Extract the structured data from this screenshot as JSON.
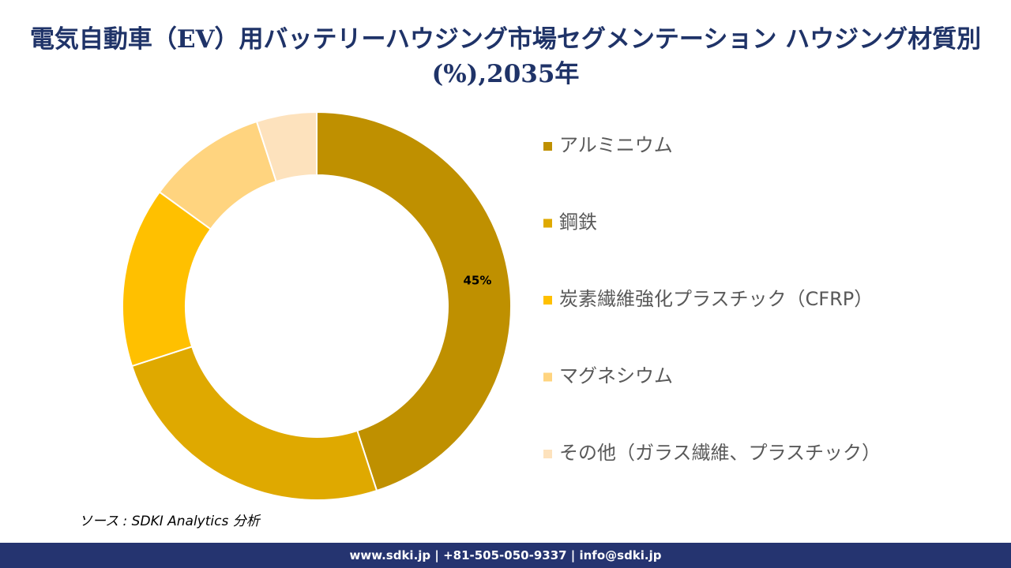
{
  "chart_data": {
    "type": "donut",
    "title": "電気自動車（EV）用バッテリーハウジング市場セグメンテーション ハウジング材質別(%),2035年",
    "categories": [
      "アルミニウム",
      "鋼鉄",
      "炭素繊維強化プラスチック（CFRP）",
      "マグネシウム",
      "その他（ガラス繊維、プラスチック）"
    ],
    "values": [
      45,
      25,
      15,
      10,
      5
    ],
    "value_labels": [
      "45%",
      null,
      null,
      null,
      null
    ],
    "colors": [
      "#bf9000",
      "#dfa900",
      "#ffc000",
      "#ffd47f",
      "#fde2bd"
    ]
  },
  "source": "ソース : SDKI Analytics 分析",
  "footer": "www.sdki.jp | +81-505-050-9337 | info@sdki.jp"
}
